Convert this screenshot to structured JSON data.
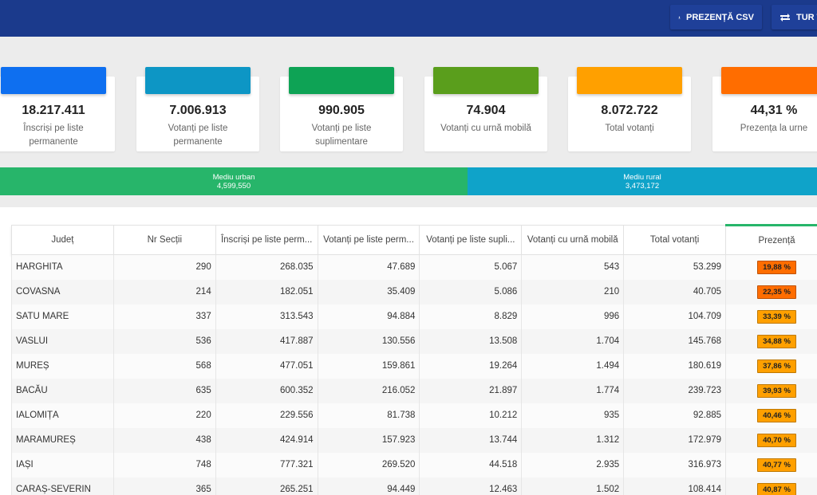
{
  "header": {
    "csv_button": "PREZENȚĂ CSV",
    "tur_button": "TUR T",
    "csv_icon": "download-icon",
    "tur_icon": "swap-icon"
  },
  "cards": [
    {
      "value": "18.217.411",
      "label": "Înscriși pe liste permanente",
      "color": "#0e6ff0"
    },
    {
      "value": "7.006.913",
      "label": "Votanți pe liste permanente",
      "color": "#0d96c5"
    },
    {
      "value": "990.905",
      "label": "Votanți pe liste suplimentare",
      "color": "#0ea355"
    },
    {
      "value": "74.904",
      "label": "Votanți cu urnă mobilă",
      "color": "#5a9e1c"
    },
    {
      "value": "8.072.722",
      "label": "Total votanți",
      "color": "#ffa000"
    },
    {
      "value": "44,31 %",
      "label": "Prezența la urne",
      "color": "#ff6d00"
    }
  ],
  "split": {
    "urban_label": "Mediu urban",
    "urban_value": "4,599,550",
    "rural_label": "Mediu rural",
    "rural_value": "3,473,172"
  },
  "table": {
    "columns": [
      "Județ",
      "Nr Secții",
      "Înscriși pe liste perm...",
      "Votanți pe liste perm...",
      "Votanți pe liste supli...",
      "Votanți cu urnă mobilă",
      "Total votanți",
      "Prezență"
    ],
    "rows": [
      {
        "judet": "HARGHITA",
        "sectii": "290",
        "inscrisi": "268.035",
        "perm": "47.689",
        "supl": "5.067",
        "mobila": "543",
        "total": "53.299",
        "prezenta": "19,88 %",
        "color": "#ff6d00"
      },
      {
        "judet": "COVASNA",
        "sectii": "214",
        "inscrisi": "182.051",
        "perm": "35.409",
        "supl": "5.086",
        "mobila": "210",
        "total": "40.705",
        "prezenta": "22,35 %",
        "color": "#ff6d00"
      },
      {
        "judet": "SATU MARE",
        "sectii": "337",
        "inscrisi": "313.543",
        "perm": "94.884",
        "supl": "8.829",
        "mobila": "996",
        "total": "104.709",
        "prezenta": "33,39 %",
        "color": "#ffa000"
      },
      {
        "judet": "VASLUI",
        "sectii": "536",
        "inscrisi": "417.887",
        "perm": "130.556",
        "supl": "13.508",
        "mobila": "1.704",
        "total": "145.768",
        "prezenta": "34,88 %",
        "color": "#ffa000"
      },
      {
        "judet": "MUREȘ",
        "sectii": "568",
        "inscrisi": "477.051",
        "perm": "159.861",
        "supl": "19.264",
        "mobila": "1.494",
        "total": "180.619",
        "prezenta": "37,86 %",
        "color": "#ffa000"
      },
      {
        "judet": "BACĂU",
        "sectii": "635",
        "inscrisi": "600.352",
        "perm": "216.052",
        "supl": "21.897",
        "mobila": "1.774",
        "total": "239.723",
        "prezenta": "39,93 %",
        "color": "#ffa000"
      },
      {
        "judet": "IALOMIȚA",
        "sectii": "220",
        "inscrisi": "229.556",
        "perm": "81.738",
        "supl": "10.212",
        "mobila": "935",
        "total": "92.885",
        "prezenta": "40,46 %",
        "color": "#ffa000"
      },
      {
        "judet": "MARAMUREȘ",
        "sectii": "438",
        "inscrisi": "424.914",
        "perm": "157.923",
        "supl": "13.744",
        "mobila": "1.312",
        "total": "172.979",
        "prezenta": "40,70 %",
        "color": "#ffa000"
      },
      {
        "judet": "IAȘI",
        "sectii": "748",
        "inscrisi": "777.321",
        "perm": "269.520",
        "supl": "44.518",
        "mobila": "2.935",
        "total": "316.973",
        "prezenta": "40,77 %",
        "color": "#ffa000"
      },
      {
        "judet": "CARAȘ-SEVERIN",
        "sectii": "365",
        "inscrisi": "265.251",
        "perm": "94.449",
        "supl": "12.463",
        "mobila": "1.502",
        "total": "108.414",
        "prezenta": "40,87 %",
        "color": "#ffa000"
      }
    ]
  }
}
